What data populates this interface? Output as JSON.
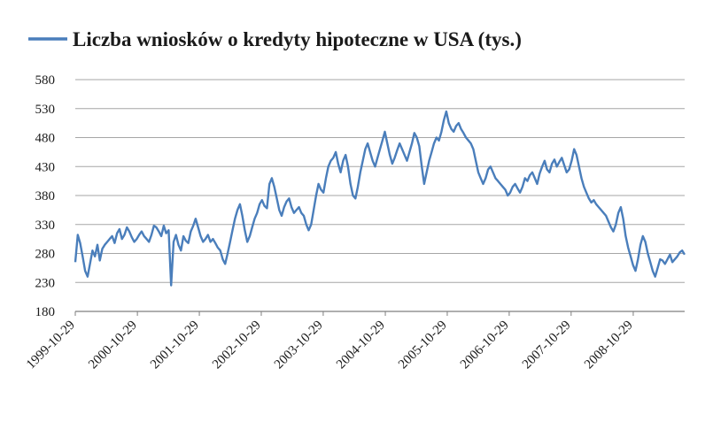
{
  "chart_data": {
    "type": "line",
    "title": "",
    "xlabel": "",
    "ylabel": "",
    "ylim": [
      180,
      580
    ],
    "yticks": [
      180,
      230,
      280,
      330,
      380,
      430,
      480,
      530,
      580
    ],
    "grid": true,
    "legend_position": "top",
    "x_tick_labels": [
      "1999-10-29",
      "2000-10-29",
      "2001-10-29",
      "2002-10-29",
      "2003-10-29",
      "2004-10-29",
      "2005-10-29",
      "2006-10-29",
      "2007-10-29",
      "2008-10-29"
    ],
    "series": [
      {
        "name": "Liczba wniosków o kredyty hipoteczne w USA (tys.)",
        "color": "#4a7ebb",
        "x_start": "1999-10-29",
        "x_end": "2009-08-28",
        "values": [
          265,
          312,
          298,
          275,
          250,
          240,
          262,
          285,
          275,
          295,
          268,
          288,
          295,
          300,
          305,
          310,
          298,
          315,
          322,
          305,
          312,
          325,
          318,
          308,
          300,
          305,
          312,
          318,
          310,
          305,
          300,
          312,
          328,
          325,
          318,
          310,
          328,
          315,
          320,
          225,
          300,
          312,
          295,
          285,
          310,
          302,
          298,
          318,
          328,
          340,
          325,
          310,
          300,
          305,
          312,
          300,
          305,
          298,
          290,
          285,
          270,
          262,
          280,
          300,
          320,
          340,
          355,
          365,
          345,
          320,
          300,
          310,
          325,
          340,
          350,
          365,
          372,
          362,
          358,
          400,
          410,
          395,
          375,
          355,
          345,
          360,
          370,
          375,
          360,
          350,
          355,
          360,
          350,
          345,
          330,
          320,
          330,
          355,
          380,
          400,
          390,
          385,
          410,
          430,
          440,
          445,
          455,
          435,
          420,
          440,
          450,
          430,
          400,
          380,
          375,
          395,
          420,
          440,
          460,
          470,
          455,
          440,
          430,
          445,
          460,
          475,
          490,
          470,
          450,
          435,
          445,
          458,
          470,
          460,
          450,
          440,
          455,
          470,
          488,
          480,
          465,
          430,
          400,
          420,
          440,
          455,
          470,
          480,
          475,
          490,
          510,
          525,
          505,
          495,
          490,
          500,
          505,
          495,
          488,
          480,
          475,
          470,
          460,
          440,
          420,
          410,
          400,
          410,
          425,
          430,
          420,
          410,
          405,
          400,
          395,
          390,
          380,
          385,
          395,
          400,
          392,
          385,
          395,
          410,
          405,
          415,
          420,
          410,
          400,
          418,
          430,
          440,
          425,
          420,
          435,
          442,
          430,
          438,
          445,
          432,
          420,
          425,
          440,
          460,
          450,
          430,
          410,
          395,
          385,
          375,
          368,
          372,
          365,
          360,
          355,
          350,
          345,
          335,
          325,
          318,
          330,
          350,
          360,
          340,
          310,
          290,
          275,
          260,
          250,
          270,
          295,
          310,
          300,
          280,
          265,
          250,
          240,
          255,
          270,
          268,
          262,
          270,
          278,
          265,
          270,
          275,
          282,
          285,
          278
        ]
      }
    ]
  }
}
